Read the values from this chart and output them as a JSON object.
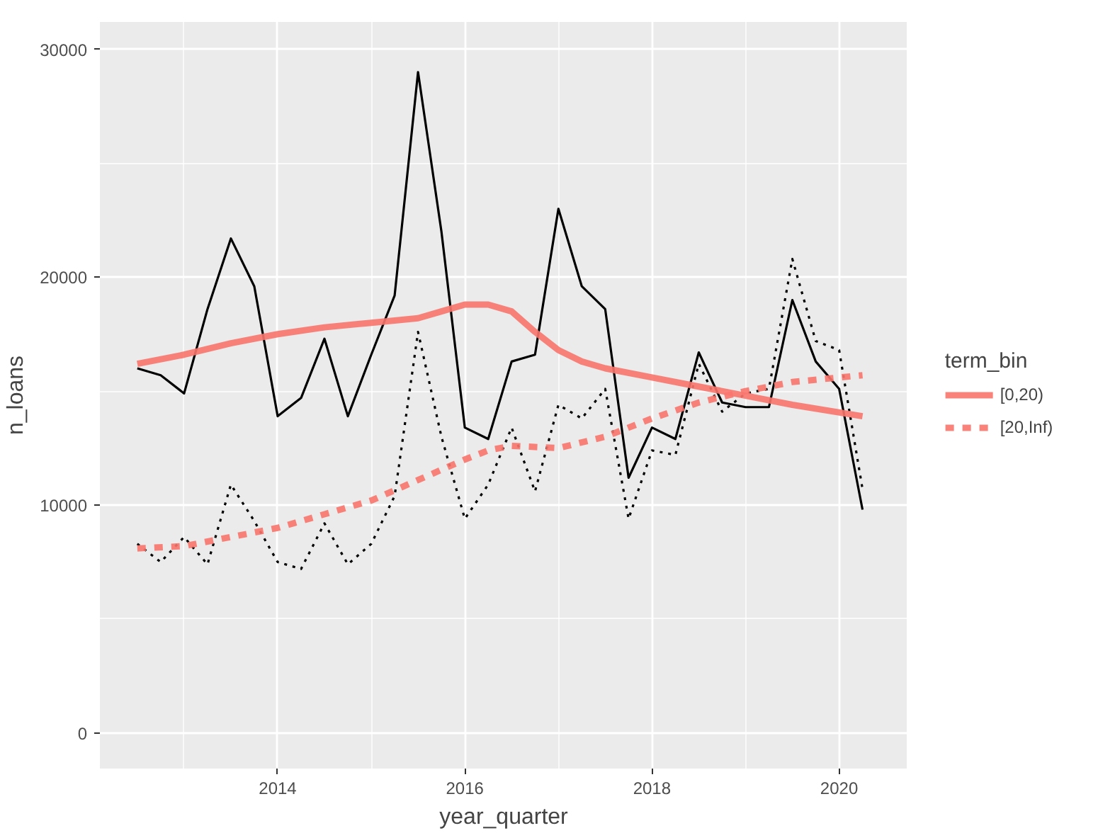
{
  "chart_data": {
    "type": "line",
    "xlabel": "year_quarter",
    "ylabel": "n_loans",
    "legend_title": "term_bin",
    "legend": "right",
    "grid": true,
    "x": [
      2012.5,
      2012.75,
      2013.0,
      2013.25,
      2013.5,
      2013.75,
      2014.0,
      2014.25,
      2014.5,
      2014.75,
      2015.0,
      2015.25,
      2015.5,
      2015.75,
      2016.0,
      2016.25,
      2016.5,
      2016.75,
      2017.0,
      2017.25,
      2017.5,
      2017.75,
      2018.0,
      2018.25,
      2018.5,
      2018.75,
      2019.0,
      2019.25,
      2019.5,
      2019.75,
      2020.0,
      2020.25
    ],
    "xlim": [
      2012.1,
      2020.73
    ],
    "xticks": [
      2014,
      2016,
      2018,
      2020
    ],
    "ylim": [
      -1560,
      31200
    ],
    "yticks": [
      0,
      10000,
      20000,
      30000
    ],
    "series": [
      {
        "color": "#000000",
        "line_style": "solid",
        "values": [
          16000,
          15700,
          14900,
          18600,
          21700,
          19600,
          13900,
          14700,
          17300,
          13900,
          16600,
          19200,
          29000,
          22000,
          13400,
          12900,
          16300,
          16600,
          23000,
          19600,
          18600,
          11200,
          13400,
          12900,
          16700,
          14500,
          14300,
          14300,
          19000,
          16300,
          15100,
          9800
        ]
      },
      {
        "color": "#000000",
        "line_style": "dotted",
        "values": [
          8300,
          7500,
          8600,
          7400,
          10900,
          9300,
          7500,
          7200,
          9200,
          7400,
          8300,
          10400,
          17600,
          13000,
          9400,
          10900,
          13400,
          10600,
          14400,
          13800,
          15100,
          9400,
          12400,
          12200,
          16200,
          14100,
          14900,
          15100,
          20800,
          17200,
          16800,
          10700
        ]
      },
      {
        "name": "[0,20)",
        "color": "#f8766d",
        "line_style": "solid",
        "x": [
          2012.5,
          2013.0,
          2013.5,
          2014.0,
          2014.5,
          2015.0,
          2015.5,
          2015.75,
          2016.0,
          2016.25,
          2016.5,
          2016.75,
          2017.0,
          2017.25,
          2017.5,
          2018.0,
          2018.5,
          2019.0,
          2019.5,
          2020.25
        ],
        "values": [
          16200,
          16600,
          17100,
          17500,
          17800,
          18000,
          18200,
          18500,
          18800,
          18800,
          18500,
          17600,
          16800,
          16300,
          16000,
          15600,
          15200,
          14800,
          14400,
          13900
        ]
      },
      {
        "name": "[20,Inf)",
        "color": "#f8766d",
        "line_style": "dashed",
        "x": [
          2012.5,
          2013.0,
          2013.5,
          2014.0,
          2014.5,
          2015.0,
          2015.5,
          2016.0,
          2016.25,
          2016.5,
          2017.0,
          2017.5,
          2018.0,
          2018.5,
          2019.0,
          2019.5,
          2020.25
        ],
        "values": [
          8100,
          8200,
          8600,
          9000,
          9600,
          10200,
          11100,
          12000,
          12400,
          12600,
          12500,
          13000,
          13800,
          14500,
          15000,
          15400,
          15700
        ]
      }
    ]
  }
}
